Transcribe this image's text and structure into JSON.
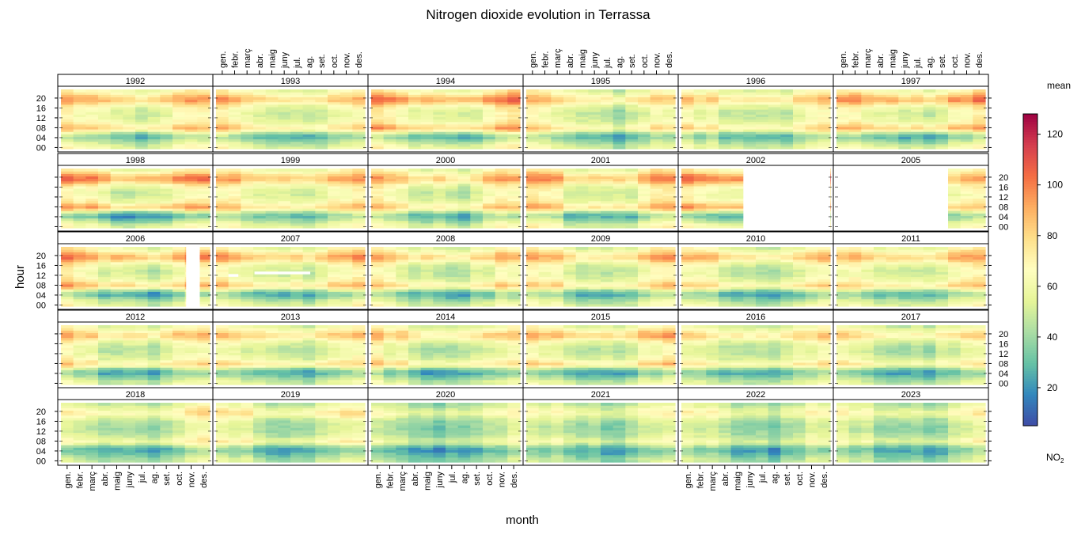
{
  "chart_data": {
    "type": "heatmap",
    "title": "Nitrogen dioxide evolution in Terrassa",
    "xlabel": "month",
    "ylabel": "hour",
    "legend_title": "mean",
    "legend_unit": "NO",
    "legend_unit_sub": "2",
    "legend_placement": "right",
    "value_range": [
      5,
      128
    ],
    "colorbar_ticks": [
      20,
      40,
      60,
      80,
      100,
      120
    ],
    "months": [
      "gen.",
      "febr.",
      "març",
      "abr.",
      "maig",
      "juny",
      "jul.",
      "ag.",
      "set.",
      "oct.",
      "nov.",
      "des."
    ],
    "hour_ticks": [
      "00",
      "04",
      "08",
      "12",
      "16",
      "20"
    ],
    "panel_layout": {
      "columns": 6,
      "rows": 5,
      "order": "top-left to bottom-right"
    },
    "panels": [
      {
        "year": "1992",
        "level": 58,
        "peak": 1.0,
        "missing": []
      },
      {
        "year": "1993",
        "level": 55,
        "peak": 1.0,
        "missing": []
      },
      {
        "year": "1994",
        "level": 60,
        "peak": 1.2,
        "missing": []
      },
      {
        "year": "1995",
        "level": 52,
        "peak": 0.9,
        "missing": []
      },
      {
        "year": "1996",
        "level": 53,
        "peak": 0.9,
        "missing": []
      },
      {
        "year": "1997",
        "level": 58,
        "peak": 1.2,
        "missing": []
      },
      {
        "year": "1998",
        "level": 58,
        "peak": 1.4,
        "missing": []
      },
      {
        "year": "1999",
        "level": 57,
        "peak": 1.0,
        "missing": []
      },
      {
        "year": "2000",
        "level": 56,
        "peak": 1.0,
        "missing": []
      },
      {
        "year": "2001",
        "level": 58,
        "peak": 1.1,
        "missing": []
      },
      {
        "year": "2002",
        "level": 60,
        "peak": 1.4,
        "missing": [
          {
            "from_month": 5.0,
            "to_month": 12.0
          }
        ]
      },
      {
        "year": "2005",
        "level": 55,
        "peak": 1.0,
        "missing": [
          {
            "from_month": 0.0,
            "to_month": 9.0
          }
        ]
      },
      {
        "year": "2006",
        "level": 58,
        "peak": 1.2,
        "missing": [
          {
            "from_month": 10.1,
            "to_month": 11.2
          }
        ]
      },
      {
        "year": "2007",
        "level": 56,
        "peak": 1.1,
        "missing": [
          {
            "from_month": 1.0,
            "to_month": 1.8,
            "hour": 12
          },
          {
            "from_month": 3.1,
            "to_month": 7.6,
            "hour": 13
          }
        ]
      },
      {
        "year": "2008",
        "level": 54,
        "peak": 1.0,
        "missing": []
      },
      {
        "year": "2009",
        "level": 55,
        "peak": 1.0,
        "missing": []
      },
      {
        "year": "2010",
        "level": 54,
        "peak": 1.0,
        "missing": []
      },
      {
        "year": "2011",
        "level": 56,
        "peak": 1.0,
        "missing": []
      },
      {
        "year": "2012",
        "level": 53,
        "peak": 1.0,
        "missing": []
      },
      {
        "year": "2013",
        "level": 52,
        "peak": 1.0,
        "missing": []
      },
      {
        "year": "2014",
        "level": 52,
        "peak": 1.0,
        "missing": []
      },
      {
        "year": "2015",
        "level": 54,
        "peak": 1.1,
        "missing": []
      },
      {
        "year": "2016",
        "level": 50,
        "peak": 0.9,
        "missing": []
      },
      {
        "year": "2017",
        "level": 50,
        "peak": 0.9,
        "missing": []
      },
      {
        "year": "2018",
        "level": 46,
        "peak": 0.8,
        "missing": []
      },
      {
        "year": "2019",
        "level": 47,
        "peak": 0.8,
        "missing": []
      },
      {
        "year": "2020",
        "level": 41,
        "peak": 0.7,
        "missing": []
      },
      {
        "year": "2021",
        "level": 43,
        "peak": 0.7,
        "missing": []
      },
      {
        "year": "2022",
        "level": 44,
        "peak": 0.7,
        "missing": []
      },
      {
        "year": "2023",
        "level": 44,
        "peak": 0.7,
        "missing": []
      }
    ]
  }
}
